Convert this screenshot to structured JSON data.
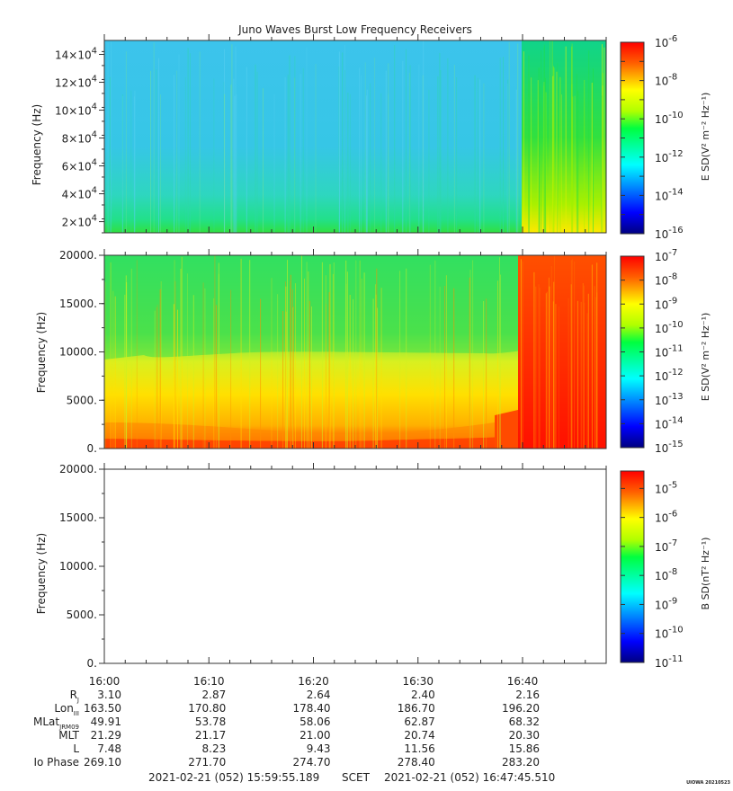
{
  "title": "Juno Waves Burst Low Frequency Receivers",
  "chart_data": [
    {
      "type": "heatmap",
      "ylabel": "Frequency (Hz)",
      "ylim": [
        12000,
        150000
      ],
      "yticks": [
        {
          "value": 20000,
          "mant": "2×10",
          "exp": "4"
        },
        {
          "value": 40000,
          "mant": "4×10",
          "exp": "4"
        },
        {
          "value": 60000,
          "mant": "6×10",
          "exp": "4"
        },
        {
          "value": 80000,
          "mant": "8×10",
          "exp": "4"
        },
        {
          "value": 100000,
          "mant": "10×10",
          "exp": "4"
        },
        {
          "value": 120000,
          "mant": "12×10",
          "exp": "4"
        },
        {
          "value": 140000,
          "mant": "14×10",
          "exp": "4"
        }
      ],
      "colorbar": {
        "label": "E SD(V² m⁻² Hz⁻¹)",
        "scale": "log",
        "range_exp": [
          -16,
          -6
        ],
        "ticks": [
          -6,
          -8,
          -10,
          -12,
          -14,
          -16
        ]
      }
    },
    {
      "type": "heatmap",
      "ylabel": "Frequency (Hz)",
      "ylim": [
        0,
        20000
      ],
      "yticks": [
        {
          "value": 0,
          "label": "0."
        },
        {
          "value": 5000,
          "label": "5000."
        },
        {
          "value": 10000,
          "label": "10000."
        },
        {
          "value": 15000,
          "label": "15000."
        },
        {
          "value": 20000,
          "label": "20000."
        }
      ],
      "colorbar": {
        "label": "E SD(V² m⁻² Hz⁻¹)",
        "scale": "log",
        "range_exp": [
          -15,
          -7
        ],
        "ticks": [
          -7,
          -8,
          -9,
          -10,
          -11,
          -12,
          -13,
          -14,
          -15
        ]
      }
    },
    {
      "type": "heatmap",
      "ylabel": "Frequency (Hz)",
      "ylim": [
        0,
        20000
      ],
      "yticks": [
        {
          "value": 0,
          "label": "0."
        },
        {
          "value": 5000,
          "label": "5000."
        },
        {
          "value": 10000,
          "label": "10000."
        },
        {
          "value": 15000,
          "label": "15000."
        },
        {
          "value": 20000,
          "label": "20000."
        }
      ],
      "colorbar": {
        "label": "B SD(nT² Hz⁻¹)",
        "scale": "log",
        "range_exp": [
          -11,
          -4.4
        ],
        "ticks": [
          -5,
          -6,
          -7,
          -8,
          -9,
          -10,
          -11
        ]
      }
    }
  ],
  "time_axis": {
    "start_min": 0,
    "end_min": 48,
    "ticks": [
      {
        "min": 0,
        "label": "16:00"
      },
      {
        "min": 10,
        "label": "16:10"
      },
      {
        "min": 20,
        "label": "16:20"
      },
      {
        "min": 30,
        "label": "16:30"
      },
      {
        "min": 40,
        "label": "16:40"
      }
    ]
  },
  "ephemeris": [
    {
      "label": "R",
      "sub": "J",
      "values": [
        "3.10",
        "2.87",
        "2.64",
        "2.40",
        "2.16"
      ]
    },
    {
      "label": "Lon",
      "sub": "III",
      "values": [
        "163.50",
        "170.80",
        "178.40",
        "186.70",
        "196.20"
      ]
    },
    {
      "label": "MLat",
      "sub": "JRM09",
      "values": [
        "49.91",
        "53.78",
        "58.06",
        "62.87",
        "68.32"
      ]
    },
    {
      "label": "MLT",
      "sub": "",
      "values": [
        "21.29",
        "21.17",
        "21.00",
        "20.74",
        "20.30"
      ]
    },
    {
      "label": "L",
      "sub": "",
      "values": [
        "7.48",
        "8.23",
        "9.43",
        "11.56",
        "15.86"
      ]
    },
    {
      "label": "Io Phase",
      "sub": "",
      "values": [
        "269.10",
        "271.70",
        "274.70",
        "278.40",
        "283.20"
      ]
    }
  ],
  "footer": {
    "start": "2021-02-21 (052) 15:59:55.189",
    "scet": "SCET",
    "end": "2021-02-21 (052) 16:47:45.510",
    "stamp": "UIOWA 20210523"
  }
}
